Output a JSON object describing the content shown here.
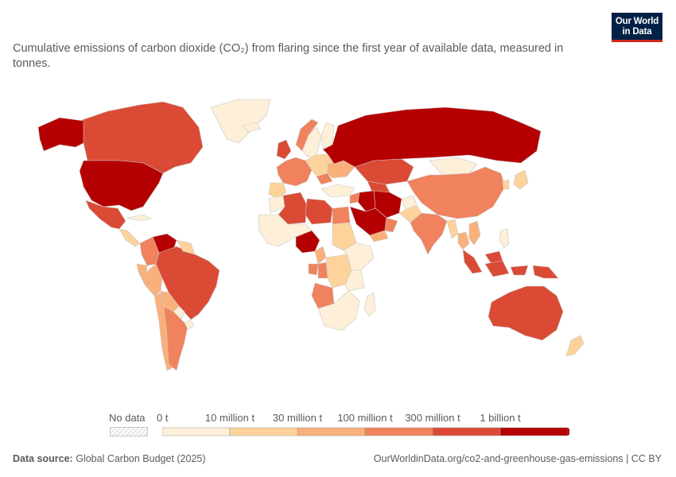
{
  "header": {
    "subtitle": "Cumulative emissions of carbon dioxide (CO₂) from flaring since the first year of available data, measured in tonnes.",
    "logo_line1": "Our World",
    "logo_line2": "in Data"
  },
  "legend": {
    "no_data_label": "No data",
    "ticks": [
      "0 t",
      "10 million t",
      "30 million t",
      "100 million t",
      "300 million t",
      "1 billion t"
    ],
    "bin_colors": [
      "#fdefd8",
      "#fdd39b",
      "#f9b07a",
      "#f0825d",
      "#db4a35",
      "#b50002"
    ]
  },
  "footer": {
    "source_label": "Data source:",
    "source_value": "Global Carbon Budget (2025)",
    "url_license": "OurWorldinData.org/co2-and-greenhouse-gas-emissions | CC BY"
  },
  "map": {
    "colors": {
      "ocean": "#ffffff",
      "border": "#c8c8c8"
    },
    "regions": [
      {
        "name": "Canada",
        "bin": 4
      },
      {
        "name": "United States",
        "bin": 5
      },
      {
        "name": "Alaska",
        "bin": 5
      },
      {
        "name": "Greenland",
        "bin": 0
      },
      {
        "name": "Mexico",
        "bin": 4
      },
      {
        "name": "Cuba",
        "bin": 0
      },
      {
        "name": "Central America",
        "bin": 1
      },
      {
        "name": "Venezuela",
        "bin": 5
      },
      {
        "name": "Colombia",
        "bin": 3
      },
      {
        "name": "Ecuador",
        "bin": 2
      },
      {
        "name": "Peru",
        "bin": 2
      },
      {
        "name": "Brazil",
        "bin": 4
      },
      {
        "name": "Bolivia",
        "bin": 2
      },
      {
        "name": "Paraguay",
        "bin": 0
      },
      {
        "name": "Chile",
        "bin": 2
      },
      {
        "name": "Argentina",
        "bin": 3
      },
      {
        "name": "Uruguay",
        "bin": 0
      },
      {
        "name": "Guianas",
        "bin": 1
      },
      {
        "name": "Iceland",
        "bin": 0
      },
      {
        "name": "United Kingdom",
        "bin": 4
      },
      {
        "name": "Norway",
        "bin": 3
      },
      {
        "name": "Sweden",
        "bin": 0
      },
      {
        "name": "Finland",
        "bin": 0
      },
      {
        "name": "Western Europe",
        "bin": 3
      },
      {
        "name": "Spain",
        "bin": 1
      },
      {
        "name": "Eastern Europe",
        "bin": 1
      },
      {
        "name": "Romania",
        "bin": 3
      },
      {
        "name": "Ukraine",
        "bin": 2
      },
      {
        "name": "Turkey",
        "bin": 0
      },
      {
        "name": "Russia",
        "bin": 5
      },
      {
        "name": "Kazakhstan",
        "bin": 4
      },
      {
        "name": "Turkmenistan",
        "bin": 4
      },
      {
        "name": "Mongolia",
        "bin": 0
      },
      {
        "name": "China",
        "bin": 3
      },
      {
        "name": "Japan",
        "bin": 1
      },
      {
        "name": "Korea",
        "bin": 1
      },
      {
        "name": "Iran",
        "bin": 5
      },
      {
        "name": "Iraq",
        "bin": 5
      },
      {
        "name": "Saudi Arabia",
        "bin": 5
      },
      {
        "name": "Syria",
        "bin": 3
      },
      {
        "name": "Yemen",
        "bin": 2
      },
      {
        "name": "Oman",
        "bin": 3
      },
      {
        "name": "Afghanistan",
        "bin": 0
      },
      {
        "name": "Pakistan",
        "bin": 1
      },
      {
        "name": "India",
        "bin": 3
      },
      {
        "name": "Myanmar",
        "bin": 1
      },
      {
        "name": "Thailand",
        "bin": 2
      },
      {
        "name": "Vietnam",
        "bin": 2
      },
      {
        "name": "Malaysia",
        "bin": 4
      },
      {
        "name": "Indonesia",
        "bin": 4
      },
      {
        "name": "Papua New Guinea",
        "bin": 4
      },
      {
        "name": "Philippines",
        "bin": 0
      },
      {
        "name": "Australia",
        "bin": 4
      },
      {
        "name": "New Zealand",
        "bin": 1
      },
      {
        "name": "Morocco",
        "bin": 0
      },
      {
        "name": "Algeria",
        "bin": 4
      },
      {
        "name": "Libya",
        "bin": 4
      },
      {
        "name": "Egypt",
        "bin": 3
      },
      {
        "name": "Sudan",
        "bin": 1
      },
      {
        "name": "West Africa",
        "bin": 0
      },
      {
        "name": "Nigeria",
        "bin": 5
      },
      {
        "name": "Cameroon",
        "bin": 2
      },
      {
        "name": "Gabon",
        "bin": 3
      },
      {
        "name": "Congo",
        "bin": 3
      },
      {
        "name": "DR Congo",
        "bin": 1
      },
      {
        "name": "Angola",
        "bin": 3
      },
      {
        "name": "East Africa",
        "bin": 0
      },
      {
        "name": "Southern Africa",
        "bin": 0
      },
      {
        "name": "Madagascar",
        "bin": 0
      }
    ]
  }
}
